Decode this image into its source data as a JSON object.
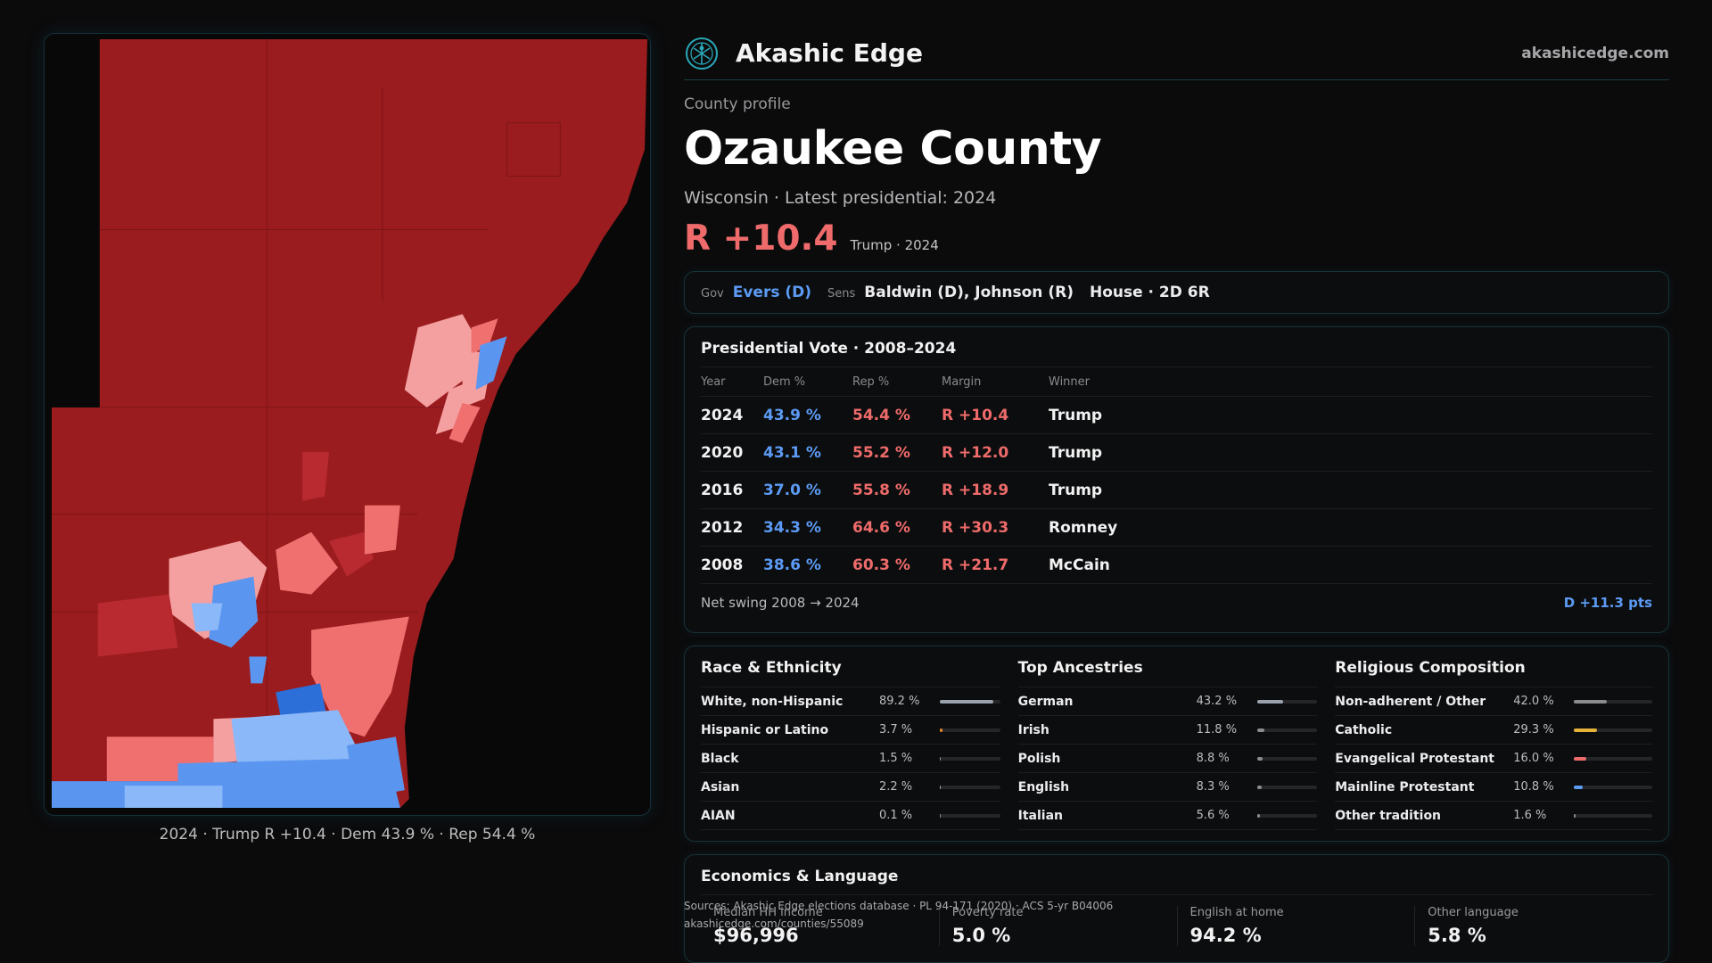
{
  "brand": {
    "name": "Akashic Edge",
    "url": "akashicedge.com"
  },
  "profile": {
    "eyebrow": "County profile",
    "county": "Ozaukee County",
    "subtitle": "Wisconsin · Latest presidential: 2024",
    "margin": "R +10.4",
    "margin_note": "Trump · 2024"
  },
  "officials": {
    "gov_label": "Gov",
    "gov": "Evers (D)",
    "sens_label": "Sens",
    "sens": "Baldwin (D), Johnson (R)",
    "house": "House · 2D 6R"
  },
  "votes": {
    "title": "Presidential Vote · 2008–2024",
    "headers": [
      "Year",
      "Dem %",
      "Rep %",
      "Margin",
      "Winner"
    ],
    "rows": [
      {
        "year": "2024",
        "dem": "43.9 %",
        "rep": "54.4 %",
        "margin": "R +10.4",
        "winner": "Trump"
      },
      {
        "year": "2020",
        "dem": "43.1 %",
        "rep": "55.2 %",
        "margin": "R +12.0",
        "winner": "Trump"
      },
      {
        "year": "2016",
        "dem": "37.0 %",
        "rep": "55.8 %",
        "margin": "R +18.9",
        "winner": "Trump"
      },
      {
        "year": "2012",
        "dem": "34.3 %",
        "rep": "64.6 %",
        "margin": "R +30.3",
        "winner": "Romney"
      },
      {
        "year": "2008",
        "dem": "38.6 %",
        "rep": "60.3 %",
        "margin": "R +21.7",
        "winner": "McCain"
      }
    ],
    "swing_label": "Net swing 2008 → 2024",
    "swing_value": "D +11.3 pts"
  },
  "race": {
    "title": "Race & Ethnicity",
    "items": [
      {
        "label": "White, non-Hispanic",
        "pct": "89.2 %",
        "value": 89.2
      },
      {
        "label": "Hispanic or Latino",
        "pct": "3.7 %",
        "value": 3.7
      },
      {
        "label": "Black",
        "pct": "1.5 %",
        "value": 1.5
      },
      {
        "label": "Asian",
        "pct": "2.2 %",
        "value": 2.2
      },
      {
        "label": "AIAN",
        "pct": "0.1 %",
        "value": 0.1
      }
    ]
  },
  "ancestry": {
    "title": "Top Ancestries",
    "items": [
      {
        "label": "German",
        "pct": "43.2 %",
        "value": 43.2
      },
      {
        "label": "Irish",
        "pct": "11.8 %",
        "value": 11.8
      },
      {
        "label": "Polish",
        "pct": "8.8 %",
        "value": 8.8
      },
      {
        "label": "English",
        "pct": "8.3 %",
        "value": 8.3
      },
      {
        "label": "Italian",
        "pct": "5.6 %",
        "value": 5.6
      }
    ]
  },
  "religion": {
    "title": "Religious Composition",
    "items": [
      {
        "label": "Non-adherent / Other",
        "pct": "42.0 %",
        "value": 42.0
      },
      {
        "label": "Catholic",
        "pct": "29.3 %",
        "value": 29.3
      },
      {
        "label": "Evangelical Protestant",
        "pct": "16.0 %",
        "value": 16.0
      },
      {
        "label": "Mainline Protestant",
        "pct": "10.8 %",
        "value": 10.8
      },
      {
        "label": "Other tradition",
        "pct": "1.6 %",
        "value": 1.6
      }
    ]
  },
  "economics": {
    "title": "Economics & Language",
    "stats": [
      {
        "label": "Median HH income",
        "value": "$96,996"
      },
      {
        "label": "Poverty rate",
        "value": "5.0 %"
      },
      {
        "label": "English at home",
        "value": "94.2 %"
      },
      {
        "label": "Other language",
        "value": "5.8 %"
      }
    ]
  },
  "sources": {
    "line1": "Sources: Akashic Edge elections database · PL 94-171 (2020) · ACS 5-yr B04006",
    "line2": "akashicedge.com/counties/55089"
  },
  "map": {
    "caption": "2024 · Trump R +10.4 · Dem 43.9 % · Rep 54.4 %"
  },
  "colors": {
    "accent": "#2aa8b8",
    "dem": "#5c9bf5",
    "rep": "#ef6b6b",
    "map_solid_rep": "#9b1c1f",
    "map_lean_rep": "#f07070",
    "map_light_rep": "#f4a0a0",
    "map_dem": "#5a96f0",
    "map_light_dem": "#8ab8f8",
    "map_dark_dem": "#2c6fd8",
    "bar_race": "#9aa3ad",
    "bar_hisp": "#e08a2c",
    "bar_catholic": "#e5b23a",
    "bar_evangelical": "#ef6b6b",
    "bar_mainline": "#5c9bf5",
    "bar_neutral": "#8c8c90"
  }
}
